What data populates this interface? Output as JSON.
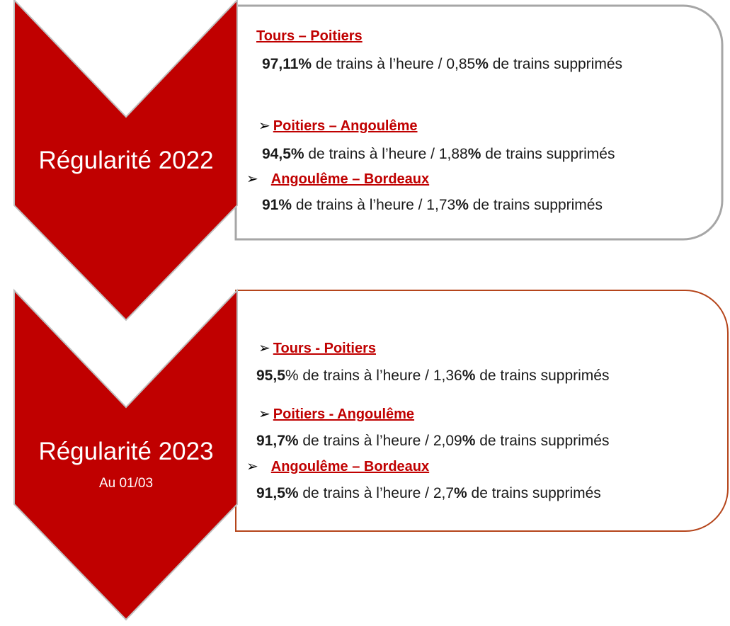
{
  "sections": [
    {
      "label": "Régularité 2022",
      "routes": [
        {
          "name": "Tours – Poitiers",
          "runs": [
            {
              "t": "97,11%",
              "b": true
            },
            {
              "t": " de trains à l’heure / 0,85"
            },
            {
              "t": "%",
              "b": true
            },
            {
              "t": " de trains supprimés"
            }
          ]
        },
        {
          "name": "Poitiers – Angoulême",
          "runs": [
            {
              "t": "94,5%",
              "b": true
            },
            {
              "t": " de trains à l’heure / 1,88"
            },
            {
              "t": "%",
              "b": true
            },
            {
              "t": " de trains supprimés"
            }
          ]
        },
        {
          "name": "Angoulême – Bordeaux",
          "runs": [
            {
              "t": "91%",
              "b": true
            },
            {
              "t": " de trains à l’heure / 1,73"
            },
            {
              "t": "%",
              "b": true
            },
            {
              "t": " de trains supprimés"
            }
          ]
        }
      ]
    },
    {
      "label": "Régularité 2023",
      "sublabel": "Au 01/03",
      "routes": [
        {
          "name": "Tours - Poitiers",
          "runs": [
            {
              "t": "95,5",
              "b": true
            },
            {
              "t": "% de trains à l’heure / 1,36"
            },
            {
              "t": "%",
              "b": true
            },
            {
              "t": " de trains supprimés"
            }
          ]
        },
        {
          "name": "Poitiers - Angoulême",
          "runs": [
            {
              "t": "91,7%",
              "b": true
            },
            {
              "t": " de trains à l’heure / 2,09"
            },
            {
              "t": "%",
              "b": true
            },
            {
              "t": " de trains supprimés"
            }
          ]
        },
        {
          "name": "Angoulême – Bordeaux",
          "runs": [
            {
              "t": "91,5%",
              "b": true
            },
            {
              "t": " de trains à l’heure / 2,7"
            },
            {
              "t": "%",
              "b": true
            },
            {
              "t": " de trains supprimés"
            }
          ]
        }
      ]
    }
  ]
}
